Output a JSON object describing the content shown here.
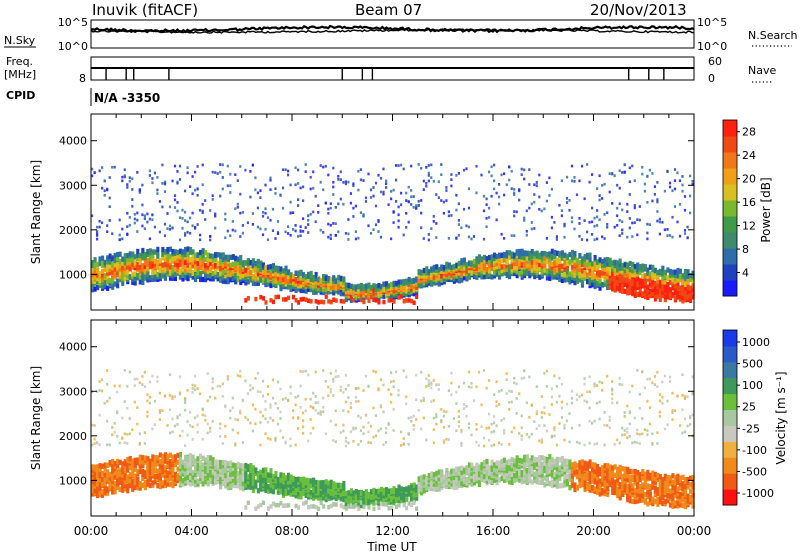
{
  "header": {
    "station": "Inuvik (fitACF)",
    "beam": "Beam 07",
    "date": "20/Nov/2013"
  },
  "noise_panel": {
    "left_label": "N.Sky",
    "right_label": "N.Search",
    "left_ticks": [
      "10^5",
      "10^0"
    ],
    "right_ticks": [
      "10^5",
      "10^0"
    ]
  },
  "freq_panel": {
    "left_label_line1": "Freq.",
    "left_label_line2": "[MHz]",
    "right_label": "Nave",
    "left_ticks": [
      "8"
    ],
    "right_ticks": [
      "60",
      "0"
    ]
  },
  "cpid": {
    "label": "CPID",
    "value": "N/A -3350"
  },
  "x_axis": {
    "label": "Time UT",
    "tick_labels": [
      "00:00",
      "04:00",
      "08:00",
      "12:00",
      "16:00",
      "20:00",
      "00:00"
    ]
  },
  "colors": {
    "power_scale": [
      "#1a1aff",
      "#2040c0",
      "#2e6ea8",
      "#3d8a6e",
      "#3f9a4a",
      "#7ab82e",
      "#d8c020",
      "#f0a018",
      "#f07818",
      "#f04a14",
      "#ff2010"
    ],
    "velocity_scale": [
      "#ff1010",
      "#f05a14",
      "#f08a1a",
      "#f0b040",
      "#c8c8c0",
      "#a8c8a0",
      "#6ac03a",
      "#3e9a5a",
      "#3a7aa0",
      "#2a5ac8",
      "#1a3ae8"
    ]
  },
  "chart_data": [
    {
      "type": "heatmap",
      "title": "",
      "quantity": "Power",
      "xlabel": "Time UT",
      "ylabel": "Slant Range [km]",
      "y_ticks": [
        1000,
        2000,
        3000,
        4000
      ],
      "ylim": [
        200,
        4600
      ],
      "xlim": [
        0,
        24
      ],
      "x_ticks": [
        0,
        4,
        8,
        12,
        16,
        20,
        24
      ],
      "colorbar_label": "Power [dB]",
      "colorbar_ticks": [
        "4",
        "8",
        "12",
        "16",
        "20",
        "24",
        "28"
      ],
      "colorbar_range": [
        0,
        30
      ]
    },
    {
      "type": "heatmap",
      "title": "",
      "quantity": "Velocity",
      "xlabel": "Time UT",
      "ylabel": "Slant Range [km]",
      "y_ticks": [
        1000,
        2000,
        3000,
        4000
      ],
      "ylim": [
        200,
        4600
      ],
      "xlim": [
        0,
        24
      ],
      "x_ticks": [
        0,
        4,
        8,
        12,
        16,
        20,
        24
      ],
      "colorbar_label": "Velocity [m s⁻¹]",
      "colorbar_ticks": [
        "1000",
        "500",
        "100",
        "25",
        "-25",
        "-100",
        "-500",
        "-1000"
      ]
    }
  ]
}
